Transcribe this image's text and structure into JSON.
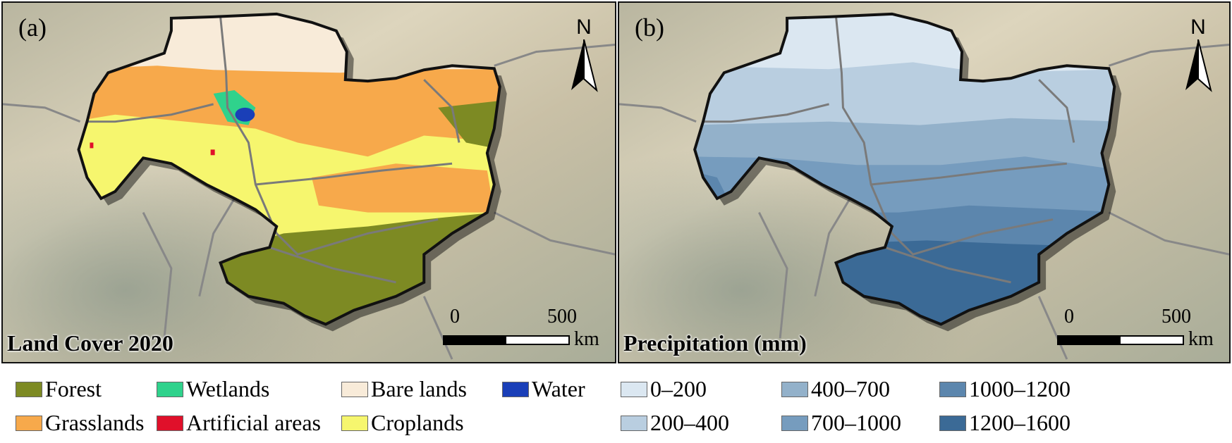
{
  "panels": {
    "a": {
      "label": "(a)",
      "title": "Land Cover 2020",
      "north": "N",
      "scale": {
        "min": "0",
        "max": "500",
        "unit": "km"
      }
    },
    "b": {
      "label": "(b)",
      "title": "Precipitation (mm)",
      "north": "N",
      "scale": {
        "min": "0",
        "max": "500",
        "unit": "km"
      }
    }
  },
  "legend_land": [
    {
      "label": "Forest",
      "color": "#7d8a23"
    },
    {
      "label": "Wetlands",
      "color": "#2fd28c"
    },
    {
      "label": "Bare lands",
      "color": "#f8ebd9"
    },
    {
      "label": "Water",
      "color": "#1a3fb8"
    },
    {
      "label": "Grasslands",
      "color": "#f7a94b"
    },
    {
      "label": "Artificial areas",
      "color": "#e0102a"
    },
    {
      "label": "Croplands",
      "color": "#f6f66e"
    }
  ],
  "legend_precip": [
    {
      "label": "0–200",
      "color": "#dbe7f1"
    },
    {
      "label": "400–700",
      "color": "#93b1ca"
    },
    {
      "label": "1000–1200",
      "color": "#5c86ad"
    },
    {
      "label": "200–400",
      "color": "#b9cee0"
    },
    {
      "label": "700–1000",
      "color": "#769cbe"
    },
    {
      "label": "1200–1600",
      "color": "#3b6a96"
    }
  ],
  "colors": {
    "terrain_light": "#d8cfb8",
    "terrain_dark": "#8e9a88",
    "boundary": "#111111",
    "rivers": "#7a7a7a"
  }
}
